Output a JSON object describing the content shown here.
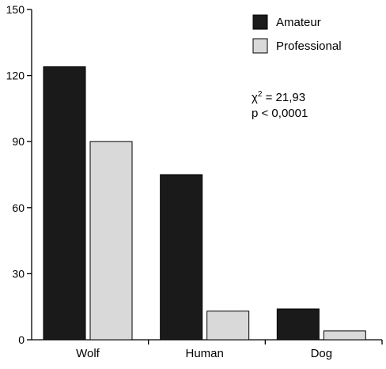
{
  "chart_data": {
    "type": "bar",
    "title": "",
    "xlabel": "",
    "ylabel": "",
    "categories": [
      "Wolf",
      "Human",
      "Dog"
    ],
    "series": [
      {
        "name": "Amateur",
        "values": [
          124,
          75,
          14
        ],
        "color": "#1a1a1a"
      },
      {
        "name": "Professional",
        "values": [
          90,
          13,
          4
        ],
        "color": "#d9d9d9"
      }
    ],
    "ylim": [
      0,
      150
    ],
    "yticks": [
      0,
      30,
      60,
      90,
      120,
      150
    ],
    "ytick_labels": [
      "0",
      "30",
      "60",
      "90",
      "120",
      "150"
    ],
    "grid": false,
    "legend_position": "top-right",
    "annotations": {
      "chi_symbol": "χ",
      "chi_exponent": "2",
      "chi_value": " = 21,93",
      "p_value": "p < 0,0001"
    }
  }
}
